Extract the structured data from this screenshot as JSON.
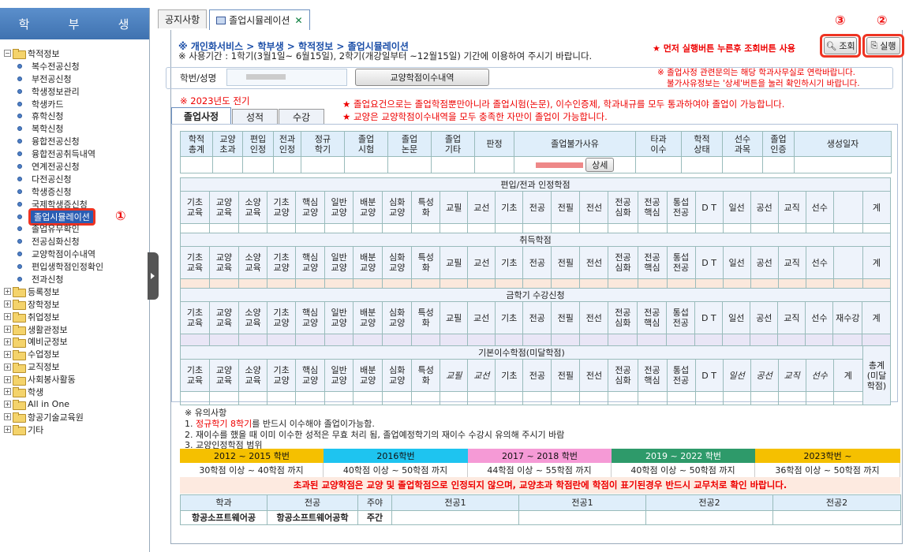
{
  "sidebar": {
    "title_chars": [
      "학",
      "부",
      "생"
    ],
    "folders": [
      {
        "label": "학적정보",
        "sign": "−"
      },
      {
        "label": "등록정보",
        "sign": "+"
      },
      {
        "label": "장학정보",
        "sign": "+"
      },
      {
        "label": "취업정보",
        "sign": "+"
      },
      {
        "label": "생활관정보",
        "sign": "+"
      },
      {
        "label": "예비군정보",
        "sign": "+"
      },
      {
        "label": "수업정보",
        "sign": "+"
      },
      {
        "label": "교직정보",
        "sign": "+"
      },
      {
        "label": "사회봉사활동",
        "sign": "+"
      },
      {
        "label": "학생",
        "sign": "+"
      },
      {
        "label": "All in One",
        "sign": "+"
      },
      {
        "label": "항공기술교육원",
        "sign": "+"
      },
      {
        "label": "기타",
        "sign": "+"
      }
    ],
    "items": [
      "복수전공신청",
      "부전공신청",
      "학생정보관리",
      "학생카드",
      "휴학신청",
      "복학신청",
      "융합전공신청",
      "융합전공취득내역",
      "연계전공신청",
      "다전공신청",
      "학생증신청",
      "국제학생증신청",
      "졸업시뮬레이션",
      "졸업유무확인",
      "전공심화신청",
      "교양학점이수내역",
      "편입생학점인정확인",
      "전과신청"
    ],
    "selected": "졸업시뮬레이션"
  },
  "tabs": [
    {
      "label": "공지사항"
    },
    {
      "label": "졸업시뮬레이션"
    }
  ],
  "annotations": {
    "one": "①",
    "two": "②",
    "three": "③"
  },
  "page": {
    "crumb": "※ 개인화서비스 > 학부생 > 학적정보 > 졸업시뮬레이션",
    "period": "※ 사용기간 : 1학기(3월1일~ 6월15일), 2학기(개강일부터 ~12월15일) 기간에 이용하여 주시기 바랍니다.",
    "warn": "★ 먼저 실행버튼 누른후 조회버튼 사용",
    "btn_query": "조회",
    "btn_run": "실행",
    "student_label": "학번/성명",
    "btn_hist": "교양학점이수내역",
    "notice1": "※ 졸업사정 관련문의는 해당 학과사무실로 연락바랍니다.",
    "notice2": "불가사유정보는 '상세'버튼을 눌러 확인하시기 바랍니다.",
    "year": "※ 2023년도 전기",
    "star1": "★ 졸업요건으로는 졸업학점뿐만아니라 졸업시험(논문), 이수인증제, 학과내규를 모두 통과하여야 졸업이 가능합니다.",
    "star2": "★ 교양은 교양학점이수내역을 모두 충족한 자만이 졸업이 가능합니다.",
    "inner_tabs": [
      "졸업사정",
      "성적",
      "수강"
    ],
    "detail_btn": "상세"
  },
  "main_headers": [
    "학적\n총계",
    "교양\n초과",
    "편입\n인정",
    "전과\n인정",
    "정규\n학기",
    "졸업\n시험",
    "졸업\n논문",
    "졸업\n기타",
    "판정",
    "졸업불가사유",
    "타과\n이수",
    "학적\n상태",
    "선수\n과목",
    "졸업\n인증",
    "생성일자"
  ],
  "sections": [
    {
      "title": "편입/전과 인정학점"
    },
    {
      "title": "취득학점"
    },
    {
      "title": "금학기 수강신청"
    },
    {
      "title": "기본이수학점(미달학점)"
    }
  ],
  "sub_cols": [
    "기초\n교육",
    "교양\n교육",
    "소양\n교육",
    "기초\n교양",
    "핵심\n교양",
    "일반\n교양",
    "배분\n교양",
    "심화\n교양",
    "특성\n화",
    "교필",
    "교선",
    "기초",
    "전공",
    "전필",
    "전선",
    "전공\n심화",
    "전공\n핵심",
    "통섭\n전공",
    "D T",
    "일선",
    "공선",
    "교직",
    "선수"
  ],
  "extra_col": [
    "",
    "",
    "재수강",
    "계"
  ],
  "last_col": [
    "계",
    "계",
    "계",
    "총계\n(미달\n학점)"
  ],
  "notes": {
    "title": "※ 유의사항",
    "n1a": "1.",
    "n1b": "정규학기 8학기",
    "n1c": "를 반드시 이수해야 졸업이가능함.",
    "n2": "2. 재이수를 했을 때 이미 이수한 성적은 무효 처리 됨, 졸업예정학기의 재이수 수강시 유의해 주시기 바람",
    "n3": "3. 교양인정학점 범위"
  },
  "bands": [
    {
      "label": "2012 ~ 2015 학번",
      "range": "30학점 이상 ~ 40학점 까지",
      "color": "#f5c000"
    },
    {
      "label": "2016학번",
      "range": "40학점 이상 ~ 50학점 까지",
      "color": "#1ec4f0"
    },
    {
      "label": "2017 ~ 2018 학번",
      "range": "44학점 이상 ~ 55학점 까지",
      "color": "#f59ad6"
    },
    {
      "label": "2019 ~ 2022 학번",
      "range": "40학점 이상 ~ 50학점 까지",
      "color": "#2e9a6a"
    },
    {
      "label": "2023학번 ~",
      "range": "36학점 이상 ~ 50학점 까지",
      "color": "#f5c000"
    }
  ],
  "warning_band": "초과된 교양학점은 교양 및 졸업학점으로 인정되지 않으며, 교양초과 학점란에 학점이 표기된경우 반드시 교무처로 확인 바랍니다.",
  "major": {
    "headers": [
      "학과",
      "전공",
      "주야",
      "전공1",
      "전공1",
      "전공2",
      "전공2"
    ],
    "values": [
      "항공소프트웨어공",
      "항공소프트웨어공학",
      "주간",
      "",
      "",
      "",
      ""
    ]
  }
}
